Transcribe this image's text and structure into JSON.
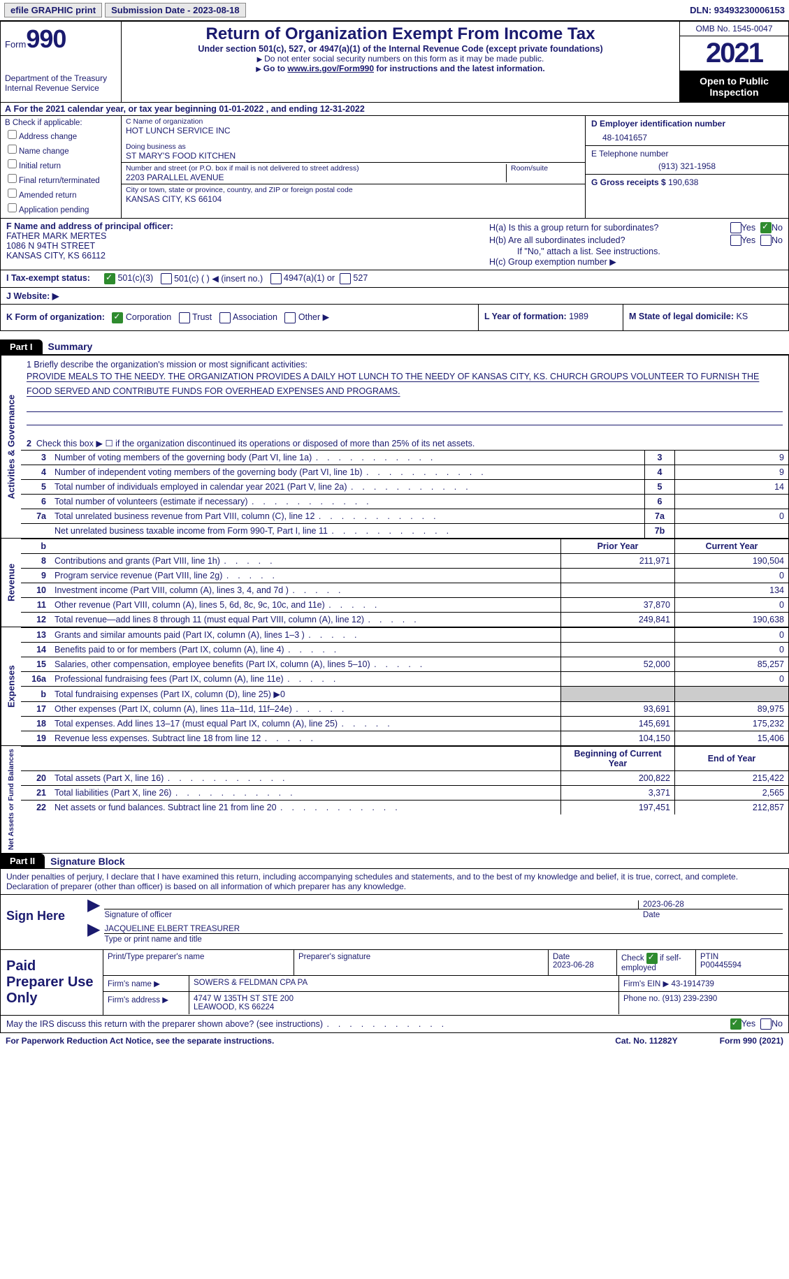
{
  "topbar": {
    "efile": "efile GRAPHIC print",
    "submission": "Submission Date - 2023-08-18",
    "dln": "DLN: 93493230006153"
  },
  "header": {
    "form_label": "Form",
    "form_num": "990",
    "dept": "Department of the Treasury\nInternal Revenue Service",
    "title": "Return of Organization Exempt From Income Tax",
    "sub": "Under section 501(c), 527, or 4947(a)(1) of the Internal Revenue Code (except private foundations)",
    "sub2a": "Do not enter social security numbers on this form as it may be made public.",
    "sub2b_pre": "Go to ",
    "sub2b_link": "www.irs.gov/Form990",
    "sub2b_post": " for instructions and the latest information.",
    "omb": "OMB No. 1545-0047",
    "year": "2021",
    "inspect": "Open to Public Inspection"
  },
  "calyear": "For the 2021 calendar year, or tax year beginning 01-01-2022   , and ending 12-31-2022",
  "b": {
    "label": "B Check if applicable:",
    "items": [
      "Address change",
      "Name change",
      "Initial return",
      "Final return/terminated",
      "Amended return",
      "Application pending"
    ]
  },
  "c": {
    "name_lbl": "C Name of organization",
    "name": "HOT LUNCH SERVICE INC",
    "dba_lbl": "Doing business as",
    "dba": "ST MARY'S FOOD KITCHEN",
    "addr_lbl": "Number and street (or P.O. box if mail is not delivered to street address)",
    "room_lbl": "Room/suite",
    "addr": "2203 PARALLEL AVENUE",
    "city_lbl": "City or town, state or province, country, and ZIP or foreign postal code",
    "city": "KANSAS CITY, KS  66104"
  },
  "d": {
    "ein_lbl": "D Employer identification number",
    "ein": "48-1041657",
    "tel_lbl": "E Telephone number",
    "tel": "(913) 321-1958",
    "gross_lbl": "G Gross receipts $",
    "gross": "190,638"
  },
  "f": {
    "lbl": "F Name and address of principal officer:",
    "name": "FATHER MARK MERTES",
    "addr1": "1086 N 94TH STREET",
    "addr2": "KANSAS CITY, KS  66112"
  },
  "h": {
    "a": "H(a)  Is this a group return for subordinates?",
    "b": "H(b)  Are all subordinates included?",
    "note": "If \"No,\" attach a list. See instructions.",
    "c": "H(c)  Group exemption number ▶"
  },
  "i": {
    "lbl": "I   Tax-exempt status:",
    "o1": "501(c)(3)",
    "o2": "501(c) (  ) ◀ (insert no.)",
    "o3": "4947(a)(1) or",
    "o4": "527"
  },
  "j": {
    "lbl": "J   Website: ▶"
  },
  "k": {
    "lbl": "K Form of organization:",
    "o1": "Corporation",
    "o2": "Trust",
    "o3": "Association",
    "o4": "Other ▶"
  },
  "l": {
    "lbl": "L Year of formation:",
    "val": "1989"
  },
  "m": {
    "lbl": "M State of legal domicile:",
    "val": "KS"
  },
  "part1": {
    "badge": "Part I",
    "title": "Summary"
  },
  "mission": {
    "prompt": "1  Briefly describe the organization's mission or most significant activities:",
    "text": "PROVIDE MEALS TO THE NEEDY. THE ORGANIZATION PROVIDES A DAILY HOT LUNCH TO THE NEEDY OF KANSAS CITY, KS. CHURCH GROUPS VOLUNTEER TO FURNISH THE FOOD SERVED AND CONTRIBUTE FUNDS FOR OVERHEAD EXPENSES AND PROGRAMS."
  },
  "gov": {
    "side": "Activities & Governance",
    "l2": "Check this box ▶ ☐ if the organization discontinued its operations or disposed of more than 25% of its net assets.",
    "rows": [
      {
        "n": "3",
        "d": "Number of voting members of the governing body (Part VI, line 1a)",
        "b": "3",
        "v": "9"
      },
      {
        "n": "4",
        "d": "Number of independent voting members of the governing body (Part VI, line 1b)",
        "b": "4",
        "v": "9"
      },
      {
        "n": "5",
        "d": "Total number of individuals employed in calendar year 2021 (Part V, line 2a)",
        "b": "5",
        "v": "14"
      },
      {
        "n": "6",
        "d": "Total number of volunteers (estimate if necessary)",
        "b": "6",
        "v": ""
      },
      {
        "n": "7a",
        "d": "Total unrelated business revenue from Part VIII, column (C), line 12",
        "b": "7a",
        "v": "0"
      },
      {
        "n": "",
        "d": "Net unrelated business taxable income from Form 990-T, Part I, line 11",
        "b": "7b",
        "v": ""
      }
    ]
  },
  "rev": {
    "side": "Revenue",
    "hdr_b": "b",
    "hdr_py": "Prior Year",
    "hdr_cy": "Current Year",
    "rows": [
      {
        "n": "8",
        "d": "Contributions and grants (Part VIII, line 1h)",
        "py": "211,971",
        "cy": "190,504"
      },
      {
        "n": "9",
        "d": "Program service revenue (Part VIII, line 2g)",
        "py": "",
        "cy": "0"
      },
      {
        "n": "10",
        "d": "Investment income (Part VIII, column (A), lines 3, 4, and 7d )",
        "py": "",
        "cy": "134"
      },
      {
        "n": "11",
        "d": "Other revenue (Part VIII, column (A), lines 5, 6d, 8c, 9c, 10c, and 11e)",
        "py": "37,870",
        "cy": "0"
      },
      {
        "n": "12",
        "d": "Total revenue—add lines 8 through 11 (must equal Part VIII, column (A), line 12)",
        "py": "249,841",
        "cy": "190,638"
      }
    ]
  },
  "exp": {
    "side": "Expenses",
    "rows": [
      {
        "n": "13",
        "d": "Grants and similar amounts paid (Part IX, column (A), lines 1–3 )",
        "py": "",
        "cy": "0"
      },
      {
        "n": "14",
        "d": "Benefits paid to or for members (Part IX, column (A), line 4)",
        "py": "",
        "cy": "0"
      },
      {
        "n": "15",
        "d": "Salaries, other compensation, employee benefits (Part IX, column (A), lines 5–10)",
        "py": "52,000",
        "cy": "85,257"
      },
      {
        "n": "16a",
        "d": "Professional fundraising fees (Part IX, column (A), line 11e)",
        "py": "",
        "cy": "0"
      },
      {
        "n": "b",
        "d": "Total fundraising expenses (Part IX, column (D), line 25) ▶0",
        "py": "grey",
        "cy": "grey"
      },
      {
        "n": "17",
        "d": "Other expenses (Part IX, column (A), lines 11a–11d, 11f–24e)",
        "py": "93,691",
        "cy": "89,975"
      },
      {
        "n": "18",
        "d": "Total expenses. Add lines 13–17 (must equal Part IX, column (A), line 25)",
        "py": "145,691",
        "cy": "175,232"
      },
      {
        "n": "19",
        "d": "Revenue less expenses. Subtract line 18 from line 12",
        "py": "104,150",
        "cy": "15,406"
      }
    ]
  },
  "net": {
    "side": "Net Assets or Fund Balances",
    "hdr_py": "Beginning of Current Year",
    "hdr_cy": "End of Year",
    "rows": [
      {
        "n": "20",
        "d": "Total assets (Part X, line 16)",
        "py": "200,822",
        "cy": "215,422"
      },
      {
        "n": "21",
        "d": "Total liabilities (Part X, line 26)",
        "py": "3,371",
        "cy": "2,565"
      },
      {
        "n": "22",
        "d": "Net assets or fund balances. Subtract line 21 from line 20",
        "py": "197,451",
        "cy": "212,857"
      }
    ]
  },
  "part2": {
    "badge": "Part II",
    "title": "Signature Block"
  },
  "sig": {
    "decl": "Under penalties of perjury, I declare that I have examined this return, including accompanying schedules and statements, and to the best of my knowledge and belief, it is true, correct, and complete. Declaration of preparer (other than officer) is based on all information of which preparer has any knowledge.",
    "sign_here": "Sign Here",
    "sig_officer": "Signature of officer",
    "date": "2023-06-28",
    "date_lbl": "Date",
    "name": "JACQUELINE ELBERT TREASURER",
    "name_lbl": "Type or print name and title"
  },
  "paid": {
    "lbl": "Paid Preparer Use Only",
    "r1": {
      "c1": "Print/Type preparer's name",
      "c2": "Preparer's signature",
      "c3": "Date\n2023-06-28",
      "c4": "Check ☑ if self-employed",
      "c5": "PTIN\nP00445594"
    },
    "r2": {
      "c1": "Firm's name    ▶",
      "c2": "SOWERS & FELDMAN CPA PA",
      "c3": "Firm's EIN ▶",
      "c4": "43-1914739"
    },
    "r3": {
      "c1": "Firm's address ▶",
      "c2": "4747 W 135TH ST STE 200\nLEAWOOD, KS  66224",
      "c3": "Phone no.",
      "c4": "(913) 239-2390"
    }
  },
  "discuss": "May the IRS discuss this return with the preparer shown above? (see instructions)",
  "footer": {
    "left": "For Paperwork Reduction Act Notice, see the separate instructions.",
    "mid": "Cat. No. 11282Y",
    "right": "Form 990 (2021)"
  }
}
